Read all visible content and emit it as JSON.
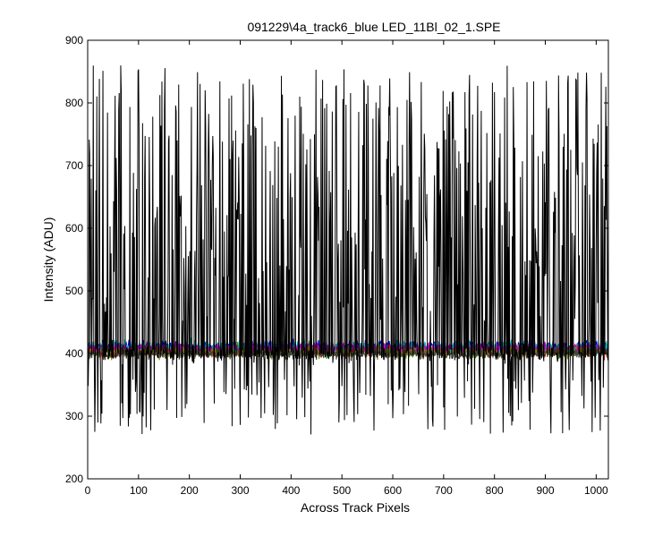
{
  "chart_data": {
    "type": "line",
    "title": "091229\\4a_track6_blue LED_11Bl_02_1.SPE",
    "xlabel": "Across Track Pixels",
    "ylabel": "Intensity (ADU)",
    "xlim": [
      0,
      1024
    ],
    "ylim": [
      200,
      900
    ],
    "x_ticks": [
      0,
      100,
      200,
      300,
      400,
      500,
      600,
      700,
      800,
      900,
      1000
    ],
    "y_ticks": [
      200,
      300,
      400,
      500,
      600,
      700,
      800,
      900
    ],
    "grid": false,
    "legend": "none",
    "x": {
      "start": 1,
      "end": 1024,
      "step": 1
    },
    "series": [
      {
        "color": "#000000",
        "profile": "spiky",
        "base": 400,
        "noise": 25,
        "spike_probability": 0.45,
        "spike_range": [
          450,
          860
        ],
        "dip_min": 270
      },
      {
        "color": "#0000ff",
        "profile": "noise",
        "base": 410,
        "noise": 18
      },
      {
        "color": "#00a000",
        "profile": "noise",
        "base": 405,
        "noise": 18
      },
      {
        "color": "#ff0000",
        "profile": "noise",
        "base": 405,
        "noise": 18
      },
      {
        "color": "#00c0c0",
        "profile": "noise",
        "base": 410,
        "noise": 18
      },
      {
        "color": "#c000c0",
        "profile": "noise",
        "base": 408,
        "noise": 16
      },
      {
        "color": "#808000",
        "profile": "noise",
        "base": 402,
        "noise": 16
      },
      {
        "color": "#404040",
        "profile": "noise",
        "base": 400,
        "noise": 14
      }
    ]
  }
}
